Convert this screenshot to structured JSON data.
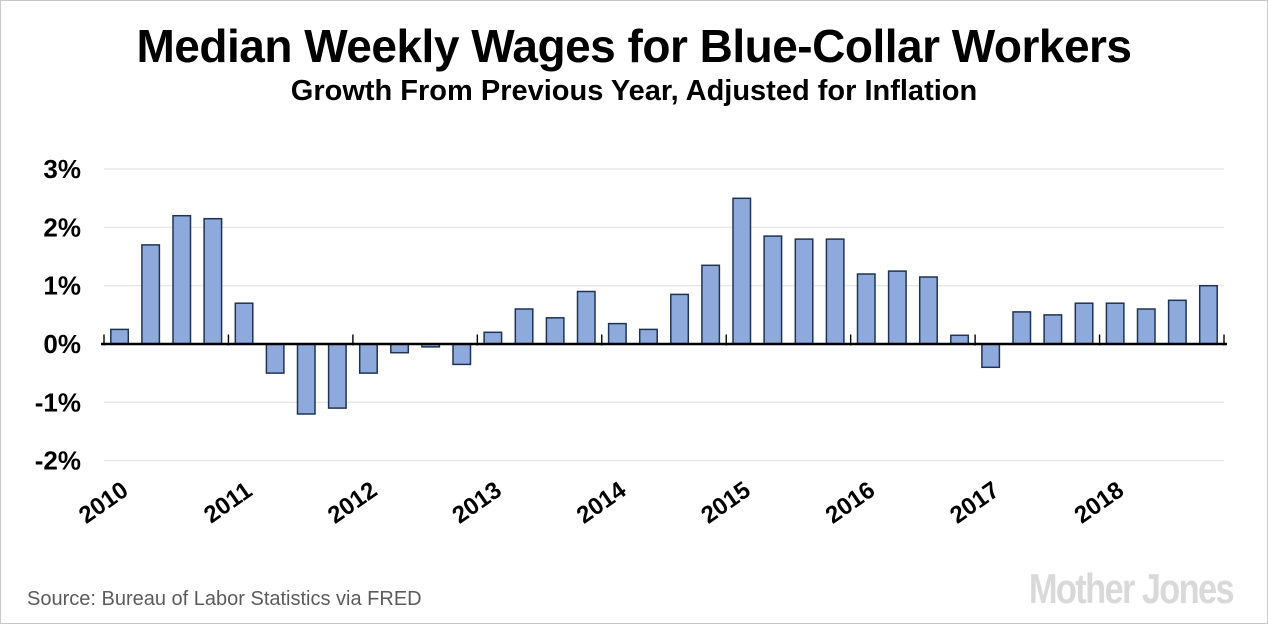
{
  "header": {
    "title": "Median Weekly Wages for Blue-Collar Workers",
    "subtitle": "Growth From Previous Year, Adjusted for Inflation"
  },
  "footer": {
    "source": "Source: Bureau of Labor Statistics via FRED",
    "logo_text": "Mother Jones"
  },
  "chart_data": {
    "type": "bar",
    "title": "Median Weekly Wages for Blue-Collar Workers",
    "subtitle": "Growth From Previous Year, Adjusted for Inflation",
    "xlabel": "",
    "ylabel": "",
    "unit": "%",
    "categories": [
      "2010 Q1",
      "2010 Q2",
      "2010 Q3",
      "2010 Q4",
      "2011 Q1",
      "2011 Q2",
      "2011 Q3",
      "2011 Q4",
      "2012 Q1",
      "2012 Q2",
      "2012 Q3",
      "2012 Q4",
      "2013 Q1",
      "2013 Q2",
      "2013 Q3",
      "2013 Q4",
      "2014 Q1",
      "2014 Q2",
      "2014 Q3",
      "2014 Q4",
      "2015 Q1",
      "2015 Q2",
      "2015 Q3",
      "2015 Q4",
      "2016 Q1",
      "2016 Q2",
      "2016 Q3",
      "2016 Q4",
      "2017 Q1",
      "2017 Q2",
      "2017 Q3",
      "2017 Q4",
      "2018 Q1",
      "2018 Q2",
      "2018 Q3",
      "2018 Q4"
    ],
    "values": [
      0.25,
      1.7,
      2.2,
      2.15,
      0.7,
      -0.5,
      -1.2,
      -1.1,
      -0.5,
      -0.15,
      -0.05,
      -0.35,
      0.2,
      0.6,
      0.45,
      0.9,
      0.35,
      0.25,
      0.85,
      1.35,
      2.5,
      1.85,
      1.8,
      1.8,
      1.2,
      1.25,
      1.15,
      0.15,
      -0.4,
      0.55,
      0.5,
      0.7,
      0.7,
      0.6,
      0.75,
      1.0
    ],
    "x_tick_labels": [
      "2010",
      "2011",
      "2012",
      "2013",
      "2014",
      "2015",
      "2016",
      "2017",
      "2018"
    ],
    "y_tick_labels": [
      "3%",
      "2%",
      "1%",
      "0%",
      "-1%",
      "-2%"
    ],
    "y_tick_values": [
      3,
      2,
      1,
      0,
      -1,
      -2
    ],
    "ylim": [
      -2,
      3
    ],
    "grid": true,
    "legend": false,
    "bar_fill": "#8ea9db",
    "bar_border": "#1f3455",
    "gridline_color": "#e7e7e7",
    "axis_color": "#000000"
  }
}
